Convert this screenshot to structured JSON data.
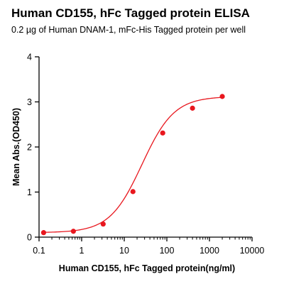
{
  "chart_data": {
    "type": "scatter",
    "title": "Human CD155, hFc Tagged protein ELISA",
    "subtitle": "0.2 µg of Human DNAM-1, mFc-His Tagged protein per well",
    "xlabel": "Human CD155, hFc Tagged protein(ng/ml)",
    "ylabel": "Mean Abs.(OD450)",
    "x_scale": "log",
    "xlim": [
      0.1,
      10000
    ],
    "ylim": [
      0,
      4
    ],
    "x_ticks": [
      0.1,
      1,
      10,
      100,
      1000,
      10000
    ],
    "x_tick_labels": [
      "0.1",
      "1",
      "10",
      "100",
      "1000",
      "10000"
    ],
    "y_ticks": [
      0,
      1,
      2,
      3,
      4
    ],
    "y_tick_labels": [
      "0",
      "1",
      "2",
      "3",
      "4"
    ],
    "series": [
      {
        "x": [
          0.128,
          0.64,
          3.2,
          16,
          80,
          400,
          2000
        ],
        "y": [
          0.1,
          0.13,
          0.29,
          1.01,
          2.31,
          2.86,
          3.12
        ],
        "color": "#e8171e",
        "marker": "circle",
        "fit": "4PL"
      }
    ],
    "grid": false,
    "legend": "none"
  }
}
